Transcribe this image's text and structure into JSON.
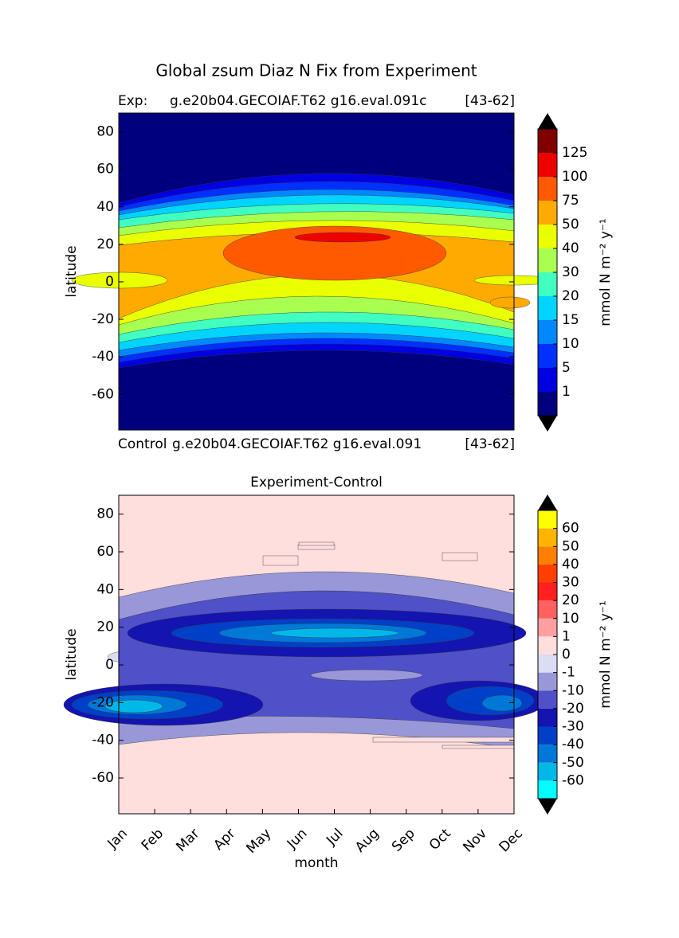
{
  "chart_data": [
    {
      "type": "contour",
      "title": "Global zsum Diaz N Fix from Experiment",
      "exp_label": "Exp:",
      "exp_case": "g.e20b04.GECOIAF.T62 g16.eval.091c",
      "exp_years": "[43-62]",
      "ctrl_label": "Control",
      "ctrl_case": "g.e20b04.GECOIAF.T62 g16.eval.091",
      "ctrl_years": "[43-62]",
      "y_label": "latitude",
      "ylim": [
        -79,
        90
      ],
      "yticks": [
        -60,
        -40,
        -20,
        0,
        20,
        40,
        60,
        80
      ],
      "xlim": [
        0,
        11
      ],
      "colorbar_label": "mmol N m⁻² y⁻¹",
      "levels": [
        1,
        5,
        10,
        15,
        20,
        30,
        40,
        50,
        75,
        100,
        125
      ],
      "colors": [
        "#00007f",
        "#0000e0",
        "#0030ff",
        "#0088ff",
        "#00d4ff",
        "#40ffc0",
        "#a8ff50",
        "#eaff00",
        "#ffaa00",
        "#ff5a00",
        "#ee0000",
        "#800000"
      ]
    },
    {
      "type": "contour",
      "title": "Experiment-Control",
      "y_label": "latitude",
      "x_label": "month",
      "ylim": [
        -79,
        90
      ],
      "yticks": [
        -60,
        -40,
        -20,
        0,
        20,
        40,
        60,
        80
      ],
      "xlim": [
        0,
        11
      ],
      "categories": [
        "Jan",
        "Feb",
        "Mar",
        "Apr",
        "May",
        "Jun",
        "Jul",
        "Aug",
        "Sep",
        "Oct",
        "Nov",
        "Dec"
      ],
      "colorbar_label": "mmol N m⁻² y⁻¹",
      "levels": [
        -60,
        -50,
        -40,
        -30,
        -20,
        -10,
        -1,
        0,
        1,
        10,
        20,
        30,
        40,
        50,
        60
      ],
      "colors": [
        "#00ffff",
        "#00b8e8",
        "#0078d8",
        "#0040c8",
        "#1414b0",
        "#5050c8",
        "#9898d8",
        "#dcdcf2",
        "#ffdede",
        "#ffa0a0",
        "#ff6060",
        "#ff2020",
        "#ff4000",
        "#ff8000",
        "#ffb400",
        "#ffff00"
      ]
    }
  ]
}
